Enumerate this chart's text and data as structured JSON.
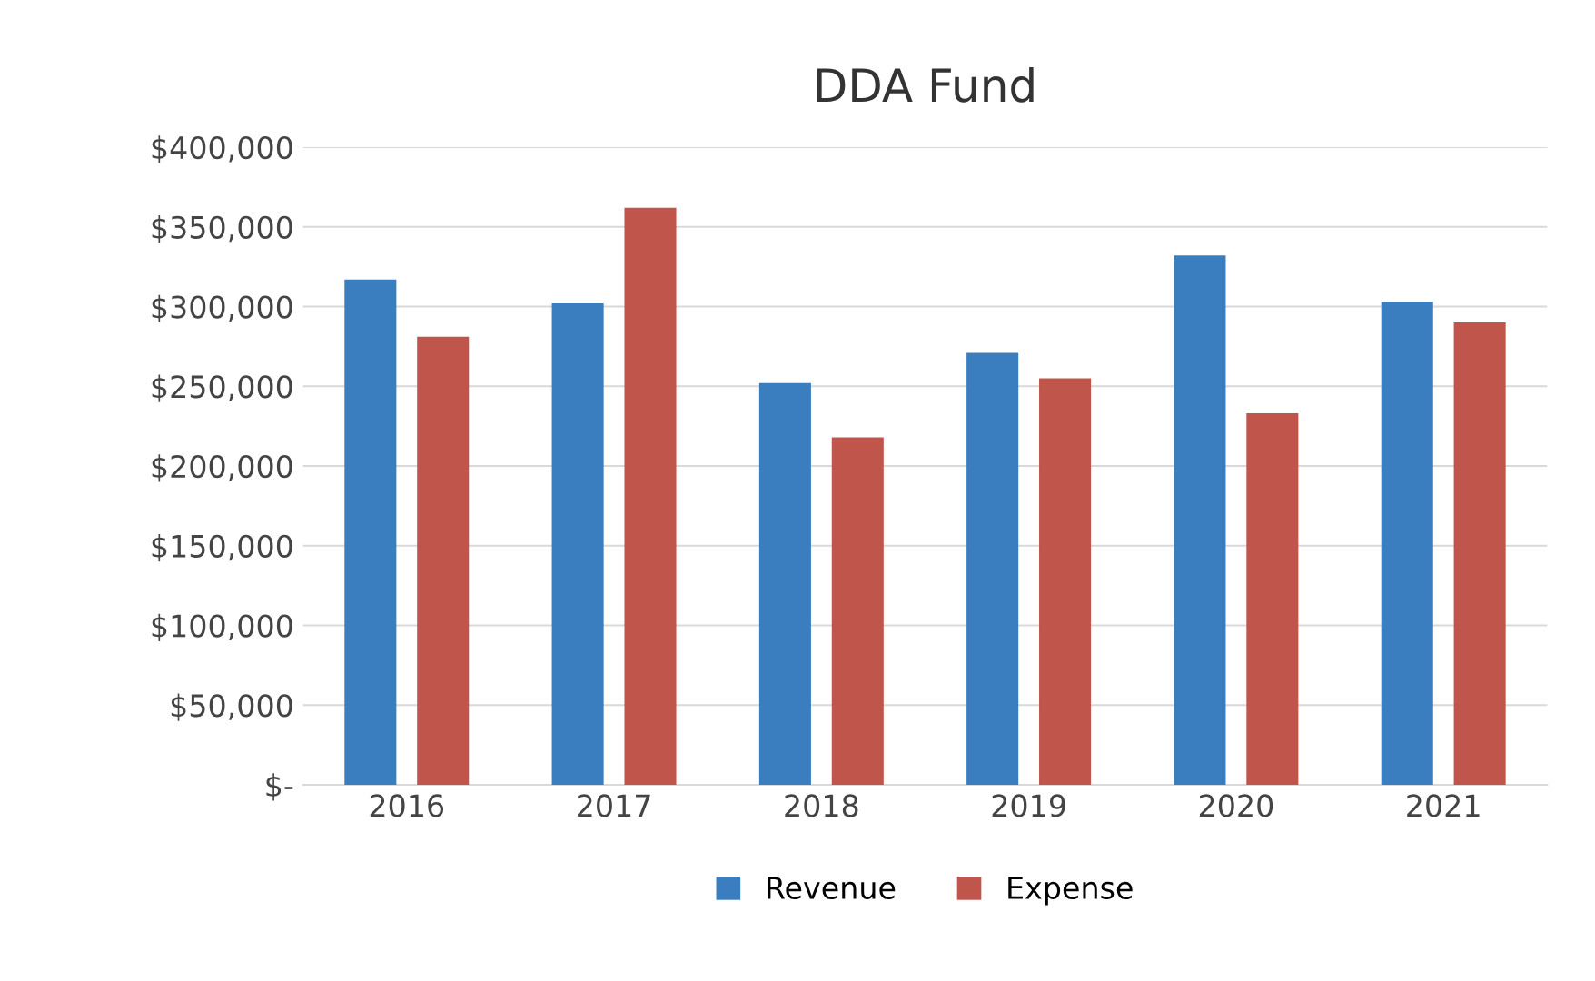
{
  "chart_data": {
    "type": "bar",
    "title": "DDA Fund",
    "categories": [
      "2016",
      "2017",
      "2018",
      "2019",
      "2020",
      "2021"
    ],
    "series": [
      {
        "name": "Revenue",
        "color": "#3b7ebf",
        "values": [
          317000,
          302000,
          252000,
          271000,
          332000,
          303000
        ]
      },
      {
        "name": "Expense",
        "color": "#c0564b",
        "values": [
          281000,
          362000,
          218000,
          255000,
          233000,
          290000
        ]
      }
    ],
    "ylim": [
      0,
      400000
    ],
    "yticks": [
      {
        "value": 0,
        "label": "$-"
      },
      {
        "value": 50000,
        "label": "$50,000"
      },
      {
        "value": 100000,
        "label": "$100,000"
      },
      {
        "value": 150000,
        "label": "$150,000"
      },
      {
        "value": 200000,
        "label": "$200,000"
      },
      {
        "value": 250000,
        "label": "$250,000"
      },
      {
        "value": 300000,
        "label": "$300,000"
      },
      {
        "value": 350000,
        "label": "$350,000"
      },
      {
        "value": 400000,
        "label": "$400,000"
      }
    ],
    "grid": "y",
    "legend": "bottom"
  }
}
